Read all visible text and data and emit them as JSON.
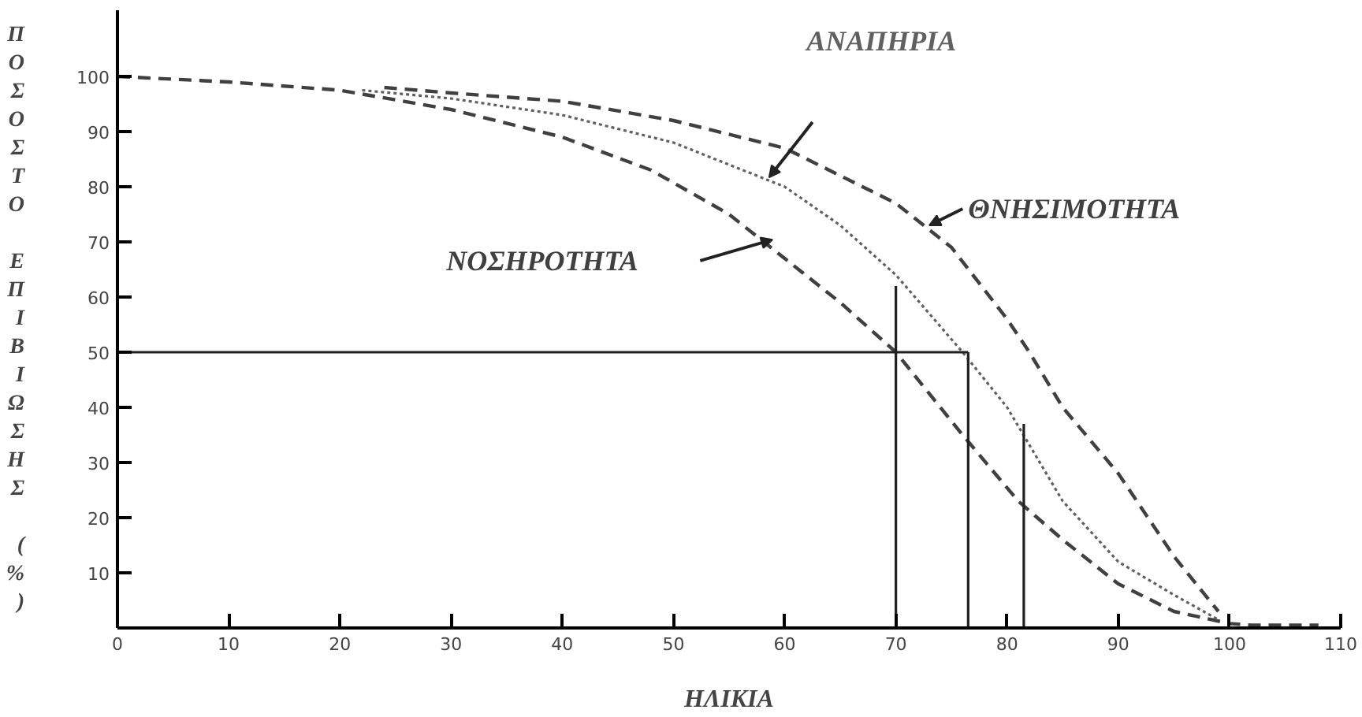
{
  "chart_data": {
    "type": "line",
    "xlabel": "ΗΛΙΚΙΑ",
    "ylabel": "ΠΟΣΟΣΤΟ ΕΠΙΒΙΩΣΗΣ (%)",
    "xlim": [
      0,
      110
    ],
    "ylim": [
      0,
      112
    ],
    "xticks": [
      0,
      10,
      20,
      30,
      40,
      50,
      60,
      70,
      80,
      90,
      100,
      110
    ],
    "yticks": [
      10,
      20,
      30,
      40,
      50,
      60,
      70,
      80,
      90,
      100
    ],
    "grid": false,
    "marker": "none",
    "series": [
      {
        "name": "ΝΟΣΗΡΟΤΗΤΑ",
        "color": "#404040",
        "line_style": "dashed",
        "x": [
          0,
          10,
          20,
          30,
          40,
          48,
          55,
          60,
          65,
          70,
          76,
          81,
          85,
          90,
          95,
          100,
          102,
          108
        ],
        "values": [
          100,
          99,
          97.5,
          94,
          89,
          83,
          75,
          67,
          59,
          50,
          35,
          23,
          16,
          8,
          3,
          0.8,
          0.5,
          0.5
        ]
      },
      {
        "name": "ΑΝΑΠΗΡΙΑ",
        "color": "#606060",
        "line_style": "dotted",
        "x": [
          22,
          30,
          40,
          50,
          60,
          65,
          70,
          73,
          76,
          80,
          85,
          90,
          95,
          99
        ],
        "values": [
          97.5,
          96,
          93,
          88,
          80,
          73,
          64,
          57,
          50,
          40,
          23,
          12,
          6,
          1.5
        ]
      },
      {
        "name": "ΘΝΗΣΙΜΟΤΗΤΑ",
        "color": "#404040",
        "line_style": "dashed",
        "x": [
          24,
          30,
          40,
          50,
          60,
          65,
          70,
          75,
          80,
          82,
          85,
          90,
          95,
          99
        ],
        "values": [
          98,
          97,
          95.5,
          92,
          87,
          82,
          77,
          69,
          56,
          50,
          40,
          28,
          13,
          3
        ]
      },
      {
        "color": "#202020",
        "line_style": "solid",
        "x": [
          0,
          76.5
        ],
        "values": [
          50,
          50
        ]
      },
      {
        "color": "#202020",
        "line_style": "solid",
        "x": [
          70,
          70
        ],
        "values": [
          0,
          62
        ]
      },
      {
        "color": "#202020",
        "line_style": "solid",
        "x": [
          76.5,
          76.5
        ],
        "values": [
          0,
          50
        ]
      },
      {
        "color": "#202020",
        "line_style": "solid",
        "x": [
          81.5,
          81.5
        ],
        "values": [
          0,
          37
        ]
      }
    ]
  }
}
